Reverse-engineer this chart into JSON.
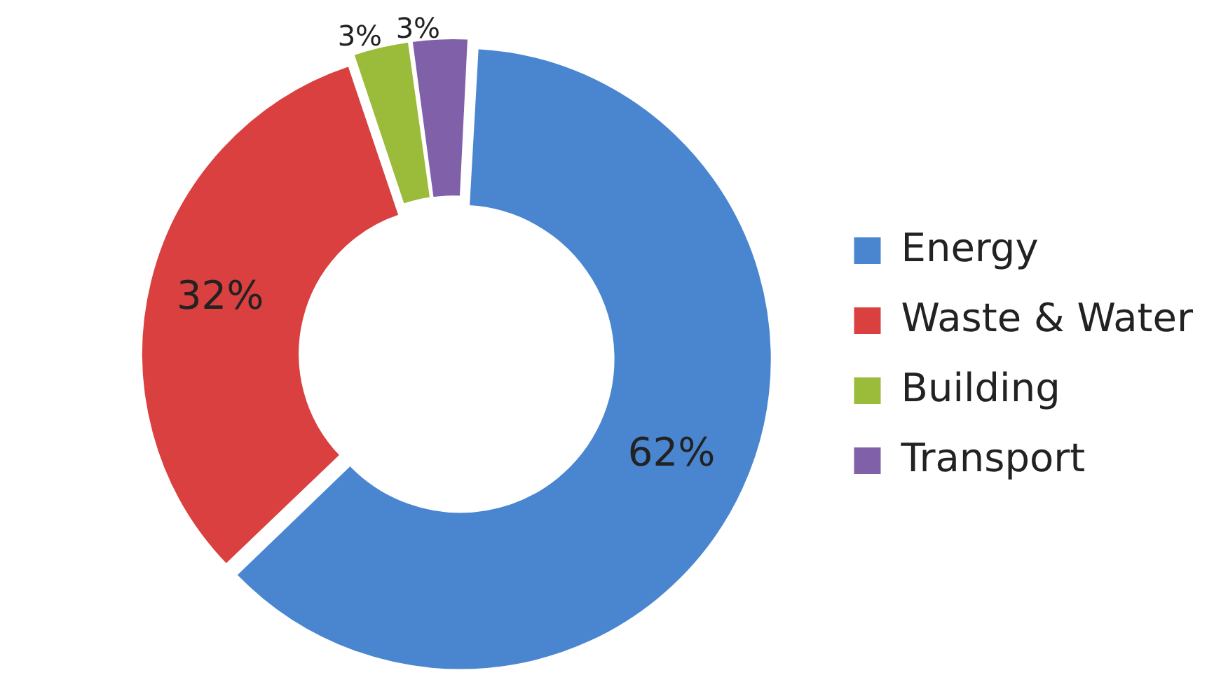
{
  "chart_data": {
    "type": "donut",
    "categories": [
      "Energy",
      "Waste & Water",
      "Building",
      "Transport"
    ],
    "values": [
      62,
      32,
      3,
      3
    ],
    "colors": [
      "#4a86d0",
      "#d9403f",
      "#9bbb3a",
      "#8060a8"
    ],
    "value_labels": [
      "62%",
      "32%",
      "3%",
      "3%"
    ],
    "legend": "right"
  }
}
